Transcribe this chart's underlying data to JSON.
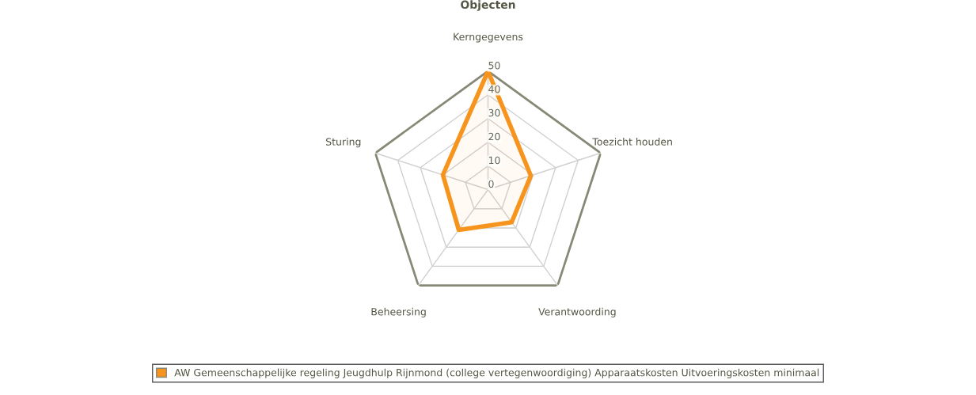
{
  "chart_data": {
    "type": "radar",
    "title": "Objecten",
    "categories": [
      "Kerngegevens",
      "Toezicht houden",
      "Verantwoording",
      "Beheersing",
      "Sturing"
    ],
    "series": [
      {
        "name": "AW Gemeenschappelijke regeling Jeugdhulp Rijnmond (college vertegenwoordiging) Apparaatskosten Uitvoeringskosten minimaal",
        "color": "#f7941d",
        "values": [
          50,
          19,
          17,
          21,
          20
        ]
      }
    ],
    "ylim": [
      0,
      50
    ],
    "yticks": [
      0,
      10,
      20,
      30,
      40,
      50
    ],
    "grid": true,
    "legend": "bottom",
    "marker": "none",
    "line_style": "solid"
  }
}
